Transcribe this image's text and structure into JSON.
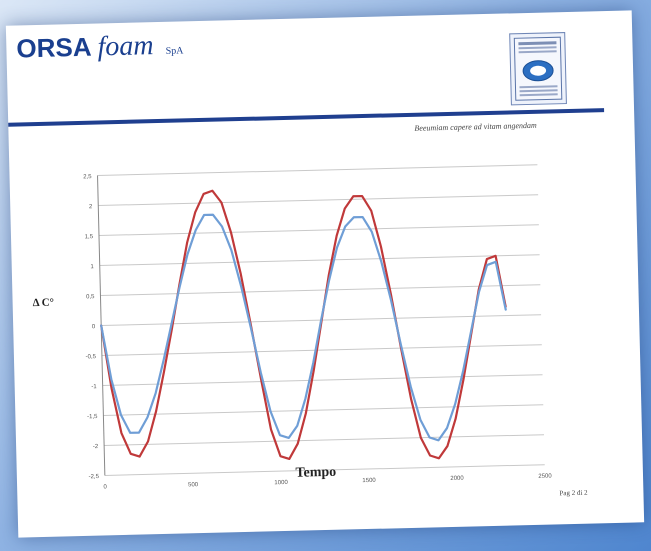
{
  "brand": {
    "orsa": "ORSA",
    "foam": "foam",
    "spa": "SpA",
    "motto": "Beeumiam capere ad vitam angendam"
  },
  "page_label": "Pag 2 di 2",
  "colors": {
    "brand_blue": "#1a3f8f",
    "series_red": "#c0393a",
    "series_blue": "#6f9ed6"
  },
  "chart_data": {
    "type": "line",
    "xlabel": "Tempo",
    "ylabel": "Δ C°",
    "xlim": [
      0,
      2500
    ],
    "ylim": [
      -2.5,
      2.5
    ],
    "x_ticks": [
      "0",
      "500",
      "1000",
      "1500",
      "2000",
      "2500"
    ],
    "y_ticks": [
      "2,5",
      "2",
      "1,5",
      "1",
      "0,5",
      "0",
      "-0,5",
      "-1",
      "-1,5",
      "-2",
      "-2,5"
    ],
    "grid": true,
    "x": [
      0,
      50,
      100,
      150,
      200,
      250,
      300,
      350,
      400,
      450,
      500,
      550,
      600,
      650,
      700,
      750,
      800,
      850,
      900,
      950,
      1000,
      1050,
      1100,
      1150,
      1200,
      1250,
      1300,
      1350,
      1400,
      1450,
      1500,
      1550,
      1600,
      1650,
      1700,
      1750,
      1800,
      1850,
      1900,
      1950,
      2000,
      2050,
      2100,
      2150,
      2200,
      2250,
      2300
    ],
    "series": [
      {
        "color": "#c0393a",
        "values": [
          0,
          -1.05,
          -1.8,
          -2.15,
          -2.2,
          -1.95,
          -1.45,
          -0.8,
          -0.1,
          0.65,
          1.35,
          1.85,
          2.15,
          2.2,
          2.0,
          1.5,
          0.8,
          -0.05,
          -0.95,
          -1.8,
          -2.25,
          -2.3,
          -2.05,
          -1.55,
          -0.85,
          -0.05,
          0.75,
          1.4,
          1.85,
          2.05,
          2.05,
          1.8,
          1.2,
          0.4,
          -0.5,
          -1.35,
          -2.0,
          -2.3,
          -2.35,
          -2.15,
          -1.7,
          -1.05,
          -0.3,
          0.45,
          0.95,
          1.0,
          0.15
        ]
      },
      {
        "color": "#6f9ed6",
        "values": [
          0,
          -0.9,
          -1.5,
          -1.8,
          -1.8,
          -1.55,
          -1.15,
          -0.6,
          0.0,
          0.6,
          1.15,
          1.55,
          1.8,
          1.8,
          1.6,
          1.2,
          0.6,
          -0.1,
          -0.85,
          -1.5,
          -1.9,
          -1.95,
          -1.75,
          -1.3,
          -0.7,
          0.0,
          0.65,
          1.2,
          1.55,
          1.7,
          1.7,
          1.45,
          0.95,
          0.3,
          -0.45,
          -1.15,
          -1.7,
          -2.0,
          -2.05,
          -1.85,
          -1.45,
          -0.9,
          -0.25,
          0.4,
          0.85,
          0.9,
          0.1
        ]
      }
    ]
  }
}
